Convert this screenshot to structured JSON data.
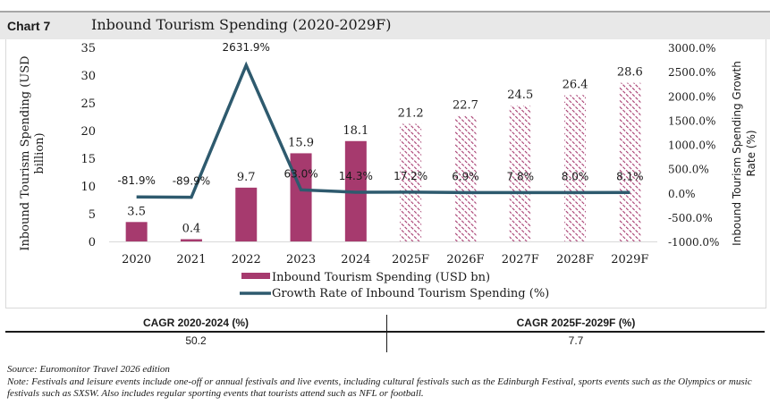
{
  "header": {
    "chart_number": "Chart 7",
    "title": "Inbound Tourism Spending (2020-2029F)"
  },
  "chart_data": {
    "type": "bar",
    "title": "Inbound Tourism Spending (2020-2029F)",
    "categories": [
      "2020",
      "2021",
      "2022",
      "2023",
      "2024",
      "2025F",
      "2026F",
      "2027F",
      "2028F",
      "2029F"
    ],
    "series": [
      {
        "name": "Inbound Tourism Spending (USD bn)",
        "type": "bar",
        "axis": "left",
        "color": "#a63a6e",
        "values": [
          3.5,
          0.4,
          9.7,
          15.9,
          18.1,
          21.2,
          22.7,
          24.5,
          26.4,
          28.6
        ],
        "labels": [
          "3.5",
          "0.4",
          "9.7",
          "15.9",
          "18.1",
          "21.2",
          "22.7",
          "24.5",
          "26.4",
          "28.6"
        ],
        "forecast_from_index": 5
      },
      {
        "name": "Growth Rate of Inbound Tourism Spending (%)",
        "type": "line",
        "axis": "right",
        "color": "#2e5a6e",
        "values": [
          -81.9,
          -89.9,
          2631.9,
          63.0,
          14.3,
          17.2,
          6.9,
          7.8,
          8.0,
          8.1
        ],
        "labels": [
          "-81.9%",
          "-89.9%",
          "2631.9%",
          "63.0%",
          "14.3%",
          "17.2%",
          "6.9%",
          "7.8%",
          "8.0%",
          "8.1%"
        ]
      }
    ],
    "ylabel": "Inbound Tourism Spending (USD billion)",
    "ylabel_lines": [
      "Inbound Tourism Spending (USD",
      "billion)"
    ],
    "ylim": [
      0,
      35
    ],
    "yticks": [
      "0",
      "5",
      "10",
      "15",
      "20",
      "25",
      "30",
      "35"
    ],
    "ytick_values": [
      0,
      5,
      10,
      15,
      20,
      25,
      30,
      35
    ],
    "y2label": "Inbound Tourism Spending Growth Rate (%)",
    "y2label_lines": [
      "Inbound Tourism Spending Growth",
      "Rate (%)"
    ],
    "y2lim": [
      -1000,
      3000
    ],
    "y2ticks": [
      "-1000.0%",
      "-500.0%",
      "0.0%",
      "500.0%",
      "1000.0%",
      "1500.0%",
      "2000.0%",
      "2500.0%",
      "3000.0%"
    ],
    "y2tick_values": [
      -1000,
      -500,
      0,
      500,
      1000,
      1500,
      2000,
      2500,
      3000
    ],
    "grid": false,
    "legend_position": "bottom"
  },
  "cagr": {
    "left_label": "CAGR 2020-2024 (%)",
    "left_value": "50.2",
    "right_label": "CAGR 2025F-2029F (%)",
    "right_value": "7.7"
  },
  "footnotes": {
    "source": "Source: Euromonitor Travel 2026 edition",
    "note": "Note: Festivals and leisure events include one-off or annual festivals and live events, including cultural festivals such as the Edinburgh Festival, sports events such as the Olympics or music festivals such as SXSW. Also includes regular sporting events that tourists attend such as NFL or football."
  }
}
